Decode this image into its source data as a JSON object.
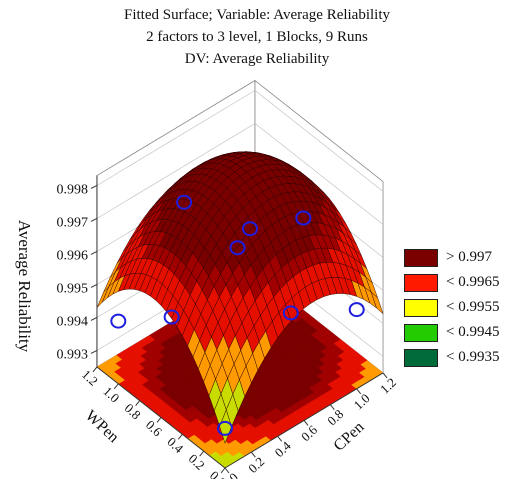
{
  "title_lines": [
    "Fitted Surface; Variable: Average Reliability",
    "2 factors to 3 level, 1 Blocks, 9 Runs",
    "DV: Average Reliability"
  ],
  "chart_data": {
    "type": "surface3d",
    "title": "Fitted Surface; Variable: Average Reliability",
    "subtitle": [
      "2 factors to 3 level, 1 Blocks, 9 Runs",
      "DV: Average Reliability"
    ],
    "xlabel": "CPen",
    "ylabel": "WPen",
    "zlabel": "Average Reliability",
    "xlim": [
      0.0,
      1.2
    ],
    "ylim": [
      0.0,
      1.2
    ],
    "zlim": [
      0.9925,
      0.998
    ],
    "x_ticks": [
      "0.0",
      "0.2",
      "0.4",
      "0.6",
      "0.8",
      "1.0",
      "1.2"
    ],
    "y_ticks": [
      "0.0",
      "0.2",
      "0.4",
      "0.6",
      "0.8",
      "1.0",
      "1.2"
    ],
    "z_ticks": [
      "0.993",
      "0.994",
      "0.995",
      "0.996",
      "0.997",
      "0.998"
    ],
    "observed_points": [
      {
        "CPen": 0.0,
        "WPen": 0.0,
        "value": 0.9937
      },
      {
        "CPen": 0.5,
        "WPen": 0.0,
        "value": 0.996
      },
      {
        "CPen": 1.0,
        "WPen": 0.0,
        "value": 0.9949
      },
      {
        "CPen": 0.0,
        "WPen": 0.5,
        "value": 0.9958
      },
      {
        "CPen": 0.5,
        "WPen": 0.5,
        "value": 0.9967
      },
      {
        "CPen": 1.0,
        "WPen": 0.5,
        "value": 0.9964
      },
      {
        "CPen": 0.0,
        "WPen": 1.0,
        "value": 0.9944
      },
      {
        "CPen": 0.5,
        "WPen": 1.0,
        "value": 0.9968
      },
      {
        "CPen": 1.0,
        "WPen": 1.0,
        "value": 0.9948
      }
    ],
    "legend_position": "right",
    "legend": [
      {
        "label": "> 0.997",
        "color": "#7a0000"
      },
      {
        "label": "< 0.9965",
        "color": "#ff1a00"
      },
      {
        "label": "< 0.9955",
        "color": "#ffff00"
      },
      {
        "label": "< 0.9945",
        "color": "#22cc00"
      },
      {
        "label": "< 0.9935",
        "color": "#006b3a"
      }
    ],
    "point_color": "#1e1ee0",
    "grid": true
  }
}
